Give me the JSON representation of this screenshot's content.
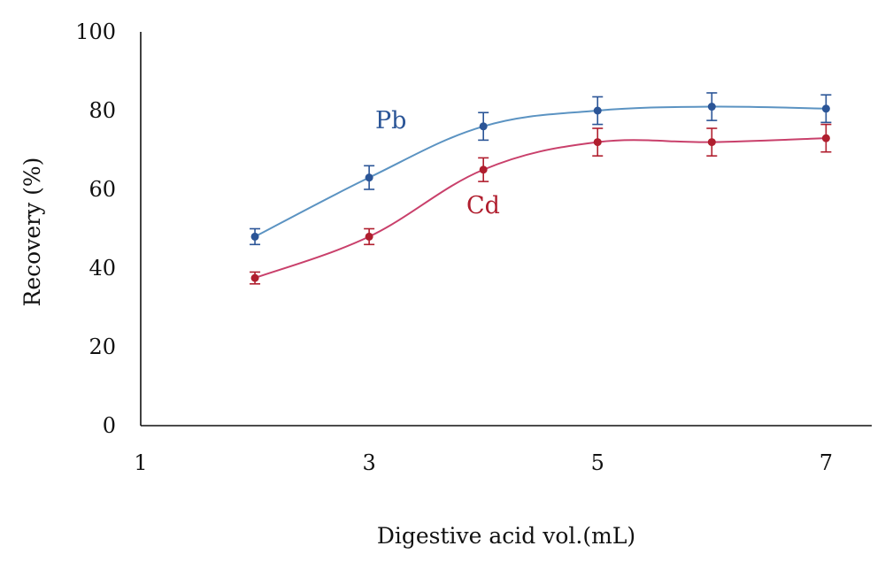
{
  "chart_data": {
    "type": "line",
    "xlabel": "Digestive acid vol.(mL)",
    "ylabel": "Recovery (%)",
    "xlim": [
      1,
      7.4
    ],
    "ylim": [
      0,
      100
    ],
    "x_ticks": [
      1,
      3,
      5,
      7
    ],
    "y_ticks": [
      0,
      20,
      40,
      60,
      80,
      100
    ],
    "grid": false,
    "legend": "none",
    "series": [
      {
        "name": "Pb",
        "color": "#2b5597",
        "line_color": "#5b93c2",
        "x": [
          2,
          3,
          4,
          5,
          6,
          7
        ],
        "y": [
          48,
          63,
          76,
          80,
          81,
          80.5
        ],
        "error": [
          2.0,
          3.0,
          3.5,
          3.5,
          3.5,
          3.5
        ]
      },
      {
        "name": "Cd",
        "color": "#b01e2e",
        "line_color": "#c9406b",
        "x": [
          2,
          3,
          4,
          5,
          6,
          7
        ],
        "y": [
          37.5,
          48,
          65,
          72,
          72,
          73
        ],
        "error": [
          1.5,
          2.0,
          3.0,
          3.5,
          3.5,
          3.5
        ]
      }
    ]
  }
}
